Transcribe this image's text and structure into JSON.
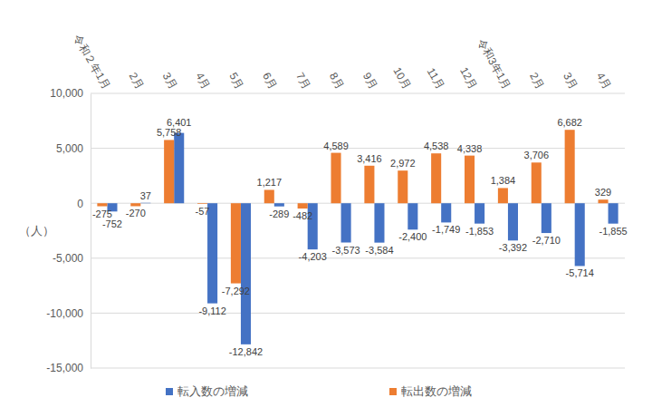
{
  "chart_data": {
    "type": "bar",
    "ylabel": "（人）",
    "categories": [
      "令和２年1月",
      "2月",
      "3月",
      "4月",
      "5月",
      "6月",
      "7月",
      "8月",
      "9月",
      "10月",
      "11月",
      "12月",
      "令和3年1月",
      "2月",
      "3月",
      "4月"
    ],
    "series": [
      {
        "name": "転入数の増減",
        "color": "#4472c4",
        "values": [
          -752,
          37,
          6401,
          -9112,
          -12842,
          -289,
          -4203,
          -3573,
          -3584,
          -2400,
          -1749,
          -1853,
          -3392,
          -2710,
          -5714,
          -1855
        ],
        "value_labels": [
          "-752",
          "37",
          "6,401",
          "-9,112",
          "-12,842",
          "-289",
          "-4,203",
          "-3,573",
          "-3,584",
          "-2,400",
          "-1,749",
          "-1,853",
          "-3,392",
          "-2,710",
          "-5,714",
          "-1,855"
        ]
      },
      {
        "name": "転出数の増減",
        "color": "#ed7d31",
        "values": [
          -275,
          -270,
          5758,
          -57,
          -7292,
          1217,
          -482,
          4589,
          3416,
          2972,
          4538,
          4338,
          1384,
          3706,
          6682,
          329
        ],
        "value_labels": [
          "-275",
          "-270",
          "5,758",
          "-57",
          "-7,292",
          "1,217",
          "-482",
          "4,589",
          "3,416",
          "2,972",
          "4,538",
          "4,338",
          "1,384",
          "3,706",
          "6,682",
          "329"
        ]
      }
    ],
    "ylim": [
      -15000,
      10000
    ],
    "yticks": [
      {
        "value": -15000,
        "label": "-15,000"
      },
      {
        "value": -10000,
        "label": "-10,000"
      },
      {
        "value": -5000,
        "label": "-5,000"
      },
      0,
      {
        "value": 5000,
        "label": "5,000"
      },
      {
        "value": 10000,
        "label": "10,000"
      }
    ],
    "grid": true,
    "legend": "bottom",
    "data_labels": true
  }
}
